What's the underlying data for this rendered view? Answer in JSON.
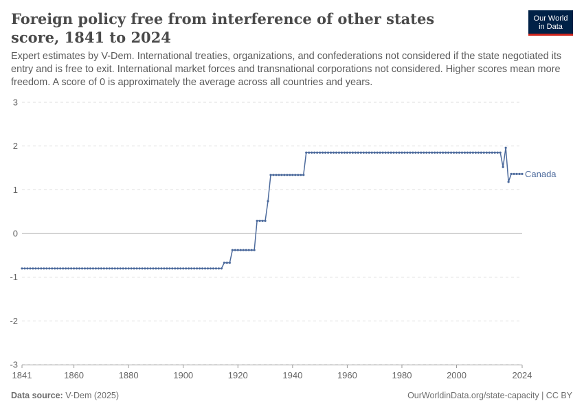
{
  "header": {
    "title": "Foreign policy free from interference of other states score, 1841 to 2024",
    "subtitle": "Expert estimates by V-Dem. International treaties, organizations, and confederations not considered if the state negotiated its entry and is free to exit. International market forces and transnational corporations not considered. Higher scores mean more freedom. A score of 0 is approximately the average across all countries and years.",
    "logo_line1": "Our World",
    "logo_line2": "in Data"
  },
  "footer": {
    "source_label": "Data source:",
    "source_value": "V-Dem (2025)",
    "url": "OurWorldinData.org/state-capacity | CC BY"
  },
  "colors": {
    "series": "#4c6a9c",
    "grid": "#dddddd",
    "zero_line": "#a8a8a8",
    "axis_text": "#666666"
  },
  "chart_data": {
    "type": "line",
    "title": "Foreign policy free from interference of other states score, 1841 to 2024",
    "xlabel": "",
    "ylabel": "",
    "xlim": [
      1841,
      2024
    ],
    "ylim": [
      -3,
      3
    ],
    "x_ticks": [
      1841,
      1860,
      1880,
      1900,
      1920,
      1940,
      1960,
      1980,
      2000,
      2024
    ],
    "y_ticks": [
      -3,
      -2,
      -1,
      0,
      1,
      2,
      3
    ],
    "grid": "horizontal dashed",
    "legend": "inline label at line end",
    "series": [
      {
        "name": "Canada",
        "segments": [
          {
            "from": 1841,
            "to": 1914,
            "value": -0.8
          },
          {
            "from": 1915,
            "to": 1917,
            "value": -0.67
          },
          {
            "from": 1918,
            "to": 1926,
            "value": -0.38
          },
          {
            "from": 1927,
            "to": 1930,
            "value": 0.29
          },
          {
            "from": 1931,
            "to": 1931,
            "value": 0.74
          },
          {
            "from": 1932,
            "to": 1944,
            "value": 1.34
          },
          {
            "from": 1945,
            "to": 2016,
            "value": 1.85
          },
          {
            "from": 2017,
            "to": 2017,
            "value": 1.52
          },
          {
            "from": 2018,
            "to": 2018,
            "value": 1.96
          },
          {
            "from": 2019,
            "to": 2019,
            "value": 1.18
          },
          {
            "from": 2020,
            "to": 2020,
            "value": 1.36
          },
          {
            "from": 2021,
            "to": 2024,
            "value": 1.36
          }
        ]
      }
    ]
  }
}
